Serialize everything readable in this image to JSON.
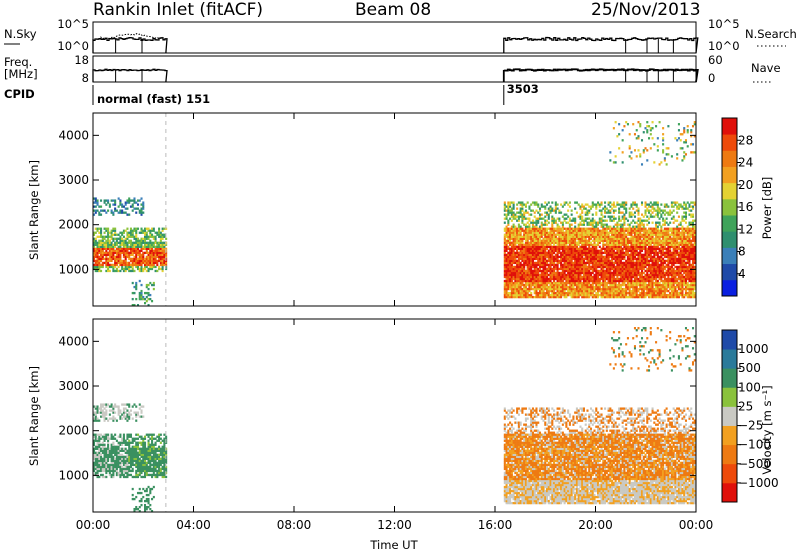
{
  "header": {
    "station": "Rankin Inlet (fitACF)",
    "beam": "Beam 08",
    "date": "25/Nov/2013"
  },
  "summary": {
    "nsky_label": "N.Sky",
    "nsky_ticks": [
      "10^5",
      "10^0"
    ],
    "nsearch_label": "N.Search",
    "nsearch_ticks": [
      "10^5",
      "10^0"
    ],
    "freq_label_1": "Freq.",
    "freq_label_2": "[MHz]",
    "freq_ticks": [
      "18",
      "8"
    ],
    "nave_label": "Nave",
    "nave_ticks": [
      "60",
      "0"
    ],
    "cpid_label": "CPID",
    "cpid_segments": [
      {
        "start_hour": 0.0,
        "label": "normal (fast) 151"
      },
      {
        "start_hour": 16.35,
        "label": "3503"
      }
    ]
  },
  "colors": {
    "power_scale": [
      "#0a1fe0",
      "#1f4aa8",
      "#3a7fb8",
      "#2f8f6f",
      "#3fa35a",
      "#8ac23c",
      "#e4d233",
      "#f2a020",
      "#ee7a12",
      "#ee4a0a",
      "#e0100a"
    ],
    "velocity_scale": [
      "#e0100a",
      "#ee4a0a",
      "#ee7a12",
      "#f2a020",
      "#c9c9c3",
      "#8ac23c",
      "#3a9060",
      "#2a7a9a",
      "#1f4aa8"
    ]
  },
  "chart_data": [
    {
      "type": "heatmap",
      "panel": "power",
      "ylabel": "Slant Range [km]",
      "xlabel": "",
      "x_ticks": [
        "00:00",
        "04:00",
        "08:00",
        "12:00",
        "16:00",
        "20:00",
        "00:00"
      ],
      "y_ticks": [
        1000,
        2000,
        3000,
        4000
      ],
      "xlim_hours": [
        0,
        24
      ],
      "ylim_km": [
        180,
        4500
      ],
      "colorbar": {
        "label": "Power [dB]",
        "ticks": [
          "28",
          "24",
          "20",
          "16",
          "12",
          "8",
          "4"
        ],
        "range": [
          0,
          30
        ]
      },
      "data_segments_hours": [
        [
          0.0,
          2.9
        ],
        [
          16.35,
          24.0
        ]
      ]
    },
    {
      "type": "heatmap",
      "panel": "velocity",
      "ylabel": "Slant Range [km]",
      "xlabel": "Time UT",
      "x_ticks": [
        "00:00",
        "04:00",
        "08:00",
        "12:00",
        "16:00",
        "20:00",
        "00:00"
      ],
      "y_ticks": [
        1000,
        2000,
        3000,
        4000
      ],
      "xlim_hours": [
        0,
        24
      ],
      "ylim_km": [
        180,
        4500
      ],
      "colorbar": {
        "label": "Velocity [m s⁻¹]",
        "ticks": [
          "1000",
          "500",
          "100",
          "25",
          "−25",
          "−100",
          "−500",
          "−1000"
        ],
        "range": [
          -1000,
          1000
        ]
      },
      "data_segments_hours": [
        [
          0.0,
          2.9
        ],
        [
          16.35,
          24.0
        ]
      ]
    }
  ]
}
